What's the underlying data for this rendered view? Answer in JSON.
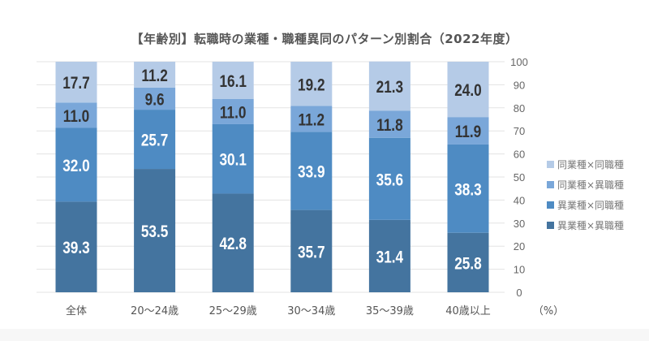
{
  "chart_data": {
    "type": "stacked-bar",
    "title": "【年齢別】転職時の業種・職種異同のパターン別割合（2022年度）",
    "categories": [
      "全体",
      "20～24歳",
      "25～29歳",
      "30～34歳",
      "35～39歳",
      "40歳以上"
    ],
    "series": [
      {
        "name": "異業種×異職種",
        "color": "#44749f",
        "label_color": "#ffffff",
        "values": [
          39.3,
          53.5,
          42.8,
          35.7,
          31.4,
          25.8
        ]
      },
      {
        "name": "異業種×同職種",
        "color": "#4e8bc3",
        "label_color": "#ffffff",
        "values": [
          32.0,
          25.7,
          30.1,
          33.9,
          35.6,
          38.3
        ]
      },
      {
        "name": "同業種×異職種",
        "color": "#7aa7d9",
        "label_color": "#333333",
        "values": [
          11.0,
          9.6,
          11.0,
          11.2,
          11.8,
          11.9
        ]
      },
      {
        "name": "同業種×同職種",
        "color": "#b5cbe7",
        "label_color": "#333333",
        "values": [
          17.7,
          11.2,
          16.1,
          19.2,
          21.3,
          24.0
        ]
      }
    ],
    "ylim": [
      0,
      100
    ],
    "yticks": [
      0,
      10,
      20,
      30,
      40,
      50,
      60,
      70,
      80,
      90,
      100
    ],
    "yaxis_position": "right",
    "yunit": "（%）",
    "grid": true,
    "legend_position": "right"
  }
}
